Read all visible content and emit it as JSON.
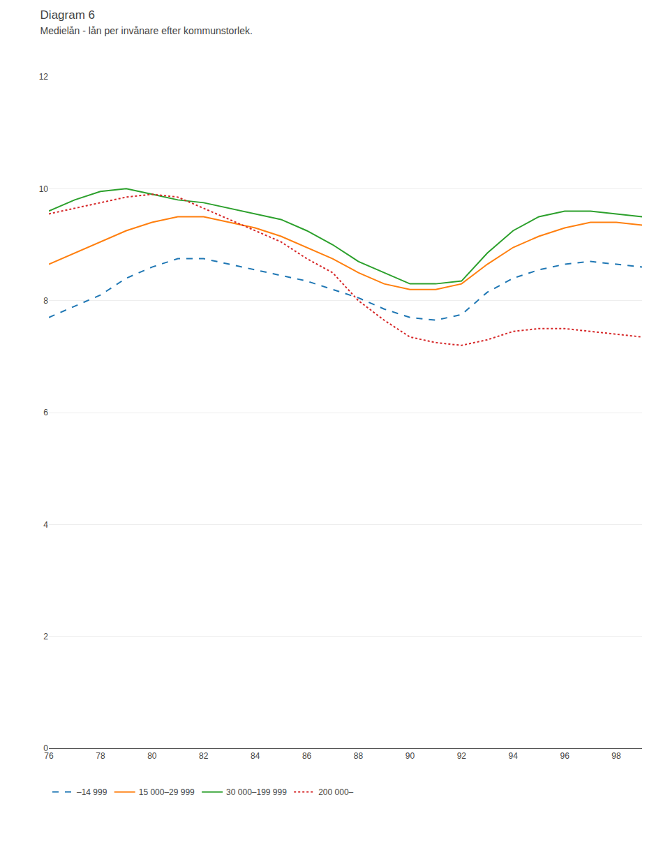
{
  "chart_data": {
    "type": "line",
    "title": "Diagram 6",
    "subtitle": "Medielån - lån per invånare efter kommunstorlek.",
    "x": [
      76,
      77,
      78,
      79,
      80,
      81,
      82,
      83,
      84,
      85,
      86,
      87,
      88,
      89,
      90,
      91,
      92,
      93,
      94,
      95,
      96,
      97,
      98,
      99
    ],
    "series": [
      {
        "name": "–14 999",
        "line_style": "dashed",
        "values": [
          7.7,
          7.9,
          8.1,
          8.4,
          8.6,
          8.75,
          8.75,
          8.65,
          8.55,
          8.45,
          8.35,
          8.2,
          8.05,
          7.85,
          7.7,
          7.65,
          7.75,
          8.15,
          8.4,
          8.55,
          8.65,
          8.7,
          8.65,
          8.6
        ]
      },
      {
        "name": "15 000–29 999",
        "line_style": "solid",
        "values": [
          8.65,
          8.85,
          9.05,
          9.25,
          9.4,
          9.5,
          9.5,
          9.4,
          9.3,
          9.15,
          8.95,
          8.75,
          8.5,
          8.3,
          8.2,
          8.2,
          8.3,
          8.65,
          8.95,
          9.15,
          9.3,
          9.4,
          9.4,
          9.35
        ]
      },
      {
        "name": "30 000–199 999",
        "line_style": "solid",
        "values": [
          9.6,
          9.8,
          9.95,
          10.0,
          9.9,
          9.8,
          9.75,
          9.65,
          9.55,
          9.45,
          9.25,
          9.0,
          8.7,
          8.5,
          8.3,
          8.3,
          8.35,
          8.85,
          9.25,
          9.5,
          9.6,
          9.6,
          9.55,
          9.5
        ]
      },
      {
        "name": "200 000–",
        "line_style": "dotted",
        "values": [
          9.55,
          9.65,
          9.75,
          9.85,
          9.9,
          9.85,
          9.65,
          9.45,
          9.25,
          9.05,
          8.75,
          8.5,
          8.0,
          7.65,
          7.35,
          7.25,
          7.2,
          7.3,
          7.45,
          7.5,
          7.5,
          7.45,
          7.4,
          7.35
        ]
      }
    ],
    "xlim": [
      76,
      99
    ],
    "xticks": [
      76,
      78,
      80,
      82,
      84,
      86,
      88,
      90,
      92,
      94,
      96,
      98
    ],
    "ylim": [
      0,
      12
    ],
    "yticks": [
      0,
      2,
      4,
      6,
      8,
      10,
      12
    ],
    "grid": "y",
    "legend": "bottom"
  }
}
